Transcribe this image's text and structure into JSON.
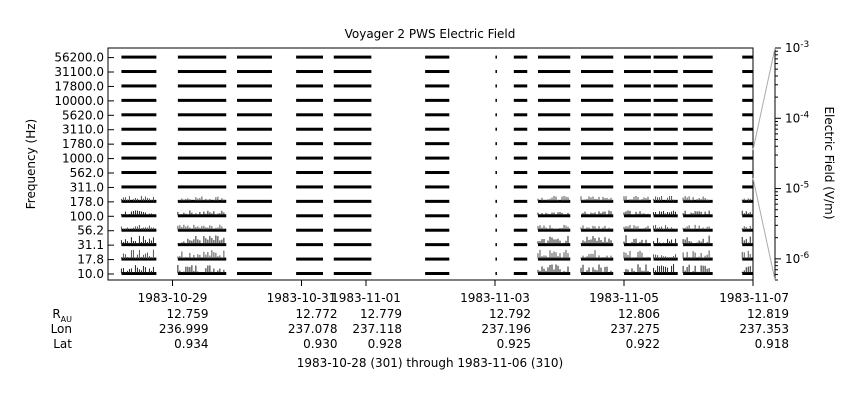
{
  "chart_data": {
    "type": "heatmap",
    "title": "Voyager 2 PWS Electric Field",
    "ylabel": "Frequency (Hz)",
    "colorbar_label": "Electric Field (V/m)",
    "subtitle": "1983-10-28 (301) through 1983-11-06 (310)",
    "x_range": [
      "1983-10-28",
      "1983-11-07"
    ],
    "frequency_channels": [
      "10.0",
      "17.8",
      "31.1",
      "56.2",
      "100.0",
      "178.0",
      "311.0",
      "562.0",
      "1000.0",
      "1780.0",
      "3110.0",
      "5620.0",
      "10000.0",
      "17800.0",
      "31100.0",
      "56200.0"
    ],
    "y_tick_labels": [
      "10.0",
      "17.8",
      "31.1",
      "56.2",
      "100.0",
      "178.0",
      "311.0",
      "562.0",
      "1000.0",
      "1780.0",
      "3110.0",
      "5620.0",
      "10000.0",
      "17800.0",
      "31100.0",
      "56200.0"
    ],
    "colorbar_ticks": [
      {
        "value": 0.001,
        "mant": "10",
        "exp": "-3"
      },
      {
        "value": 0.0001,
        "mant": "10",
        "exp": "-4"
      },
      {
        "value": 1e-05,
        "mant": "10",
        "exp": "-5"
      },
      {
        "value": 1e-06,
        "mant": "10",
        "exp": "-6"
      }
    ],
    "colorbar_range": [
      5e-07,
      0.001
    ],
    "colorbar_scale": "log",
    "data_coverage_days": [
      [
        "1983-10-28T05:00",
        "1983-10-28T18:00"
      ],
      [
        "1983-10-29T02:00",
        "1983-10-29T20:00"
      ],
      [
        "1983-10-30T00:00",
        "1983-10-30T13:00"
      ],
      [
        "1983-10-30T22:00",
        "1983-10-31T08:00"
      ],
      [
        "1983-10-31T12:00",
        "1983-11-01T02:00"
      ],
      [
        "1983-11-01T22:00",
        "1983-11-02T07:00"
      ],
      [
        "1983-11-03T00:10",
        "1983-11-03T00:40"
      ],
      [
        "1983-11-03T07:00",
        "1983-11-03T12:00"
      ],
      [
        "1983-11-03T16:00",
        "1983-11-04T04:00"
      ],
      [
        "1983-11-04T08:00",
        "1983-11-04T20:00"
      ],
      [
        "1983-11-05T00:00",
        "1983-11-05T10:00"
      ],
      [
        "1983-11-05T11:00",
        "1983-11-05T20:00"
      ],
      [
        "1983-11-05T22:00",
        "1983-11-06T09:00"
      ],
      [
        "1983-11-06T20:00",
        "1983-11-07T00:00"
      ]
    ],
    "x_tick_labels": [
      "1983-10-29",
      "1983-10-31",
      "1983-11-01",
      "1983-11-03",
      "1983-11-05",
      "1983-11-07"
    ],
    "x_tick_dates": [
      "1983-10-29",
      "1983-10-31",
      "1983-11-01",
      "1983-11-03",
      "1983-11-05",
      "1983-11-07"
    ],
    "ephemeris": {
      "labels": {
        "rau_main": "R",
        "rau_sub": "AU",
        "lon": "Lon",
        "lat": "Lat"
      },
      "columns": [
        {
          "date": "1983-10-29",
          "rau": "12.759",
          "lon": "236.999",
          "lat": "0.934"
        },
        {
          "date": "1983-10-31",
          "rau": "12.772",
          "lon": "237.078",
          "lat": "0.930"
        },
        {
          "date": "1983-11-01",
          "rau": "12.779",
          "lon": "237.118",
          "lat": "0.928"
        },
        {
          "date": "1983-11-03",
          "rau": "12.792",
          "lon": "237.196",
          "lat": "0.925"
        },
        {
          "date": "1983-11-05",
          "rau": "12.806",
          "lon": "237.275",
          "lat": "0.922"
        },
        {
          "date": "1983-11-07",
          "rau": "12.819",
          "lon": "237.353",
          "lat": "0.918"
        }
      ]
    }
  }
}
